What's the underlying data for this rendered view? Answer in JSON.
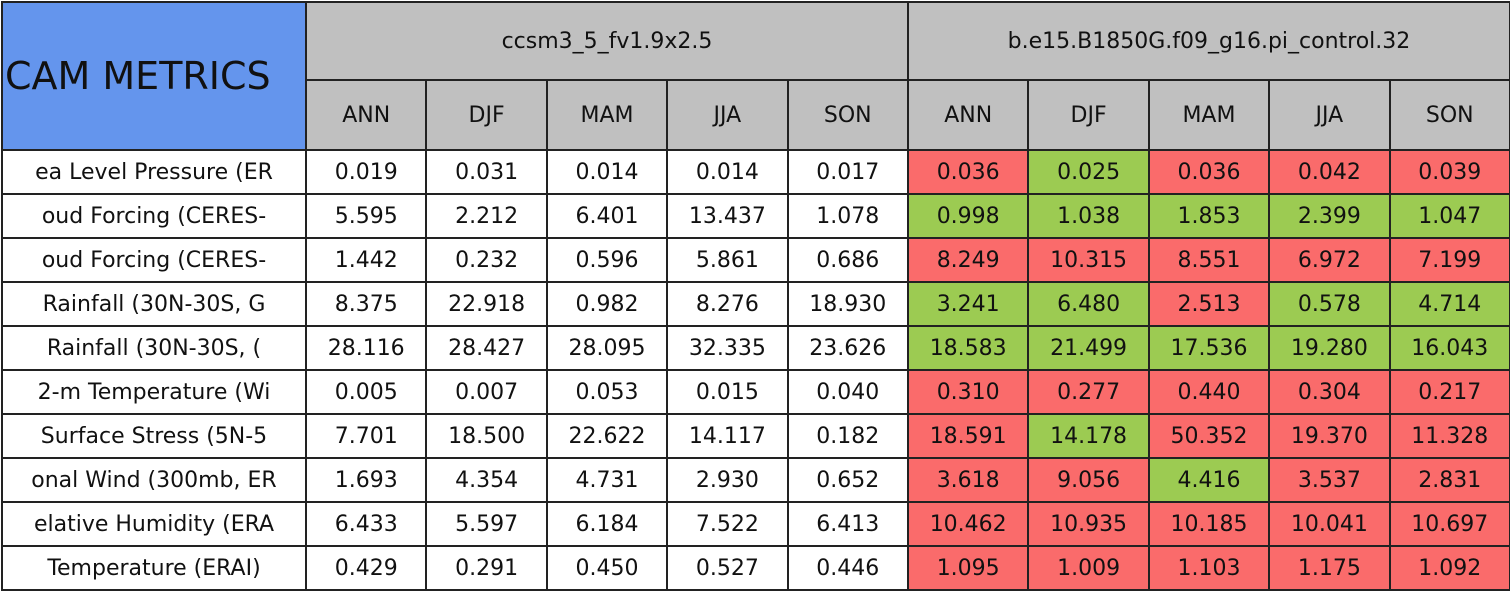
{
  "table": {
    "title": "CAM METRICS",
    "models": [
      "ccsm3_5_fv1.9x2.5",
      "b.e15.B1850G.f09_g16.pi_control.32"
    ],
    "seasons": [
      "ANN",
      "DJF",
      "MAM",
      "JJA",
      "SON"
    ],
    "rows": [
      {
        "label": "ea Level Pressure (ER",
        "cells": [
          "0.019",
          "0.031",
          "0.014",
          "0.014",
          "0.017",
          "0.036",
          "0.025",
          "0.036",
          "0.042",
          "0.039"
        ],
        "colors": [
          "#fa6b6b",
          "#9ccb52",
          "#fa6b6b",
          "#fa6b6b",
          "#fa6b6b"
        ]
      },
      {
        "label": "oud Forcing (CERES-",
        "cells": [
          "5.595",
          "2.212",
          "6.401",
          "13.437",
          "1.078",
          "0.998",
          "1.038",
          "1.853",
          "2.399",
          "1.047"
        ],
        "colors": [
          "#9ccb52",
          "#9ccb52",
          "#9ccb52",
          "#9ccb52",
          "#9ccb52"
        ]
      },
      {
        "label": "oud Forcing (CERES-",
        "cells": [
          "1.442",
          "0.232",
          "0.596",
          "5.861",
          "0.686",
          "8.249",
          "10.315",
          "8.551",
          "6.972",
          "7.199"
        ],
        "colors": [
          "#fa6b6b",
          "#fa6b6b",
          "#fa6b6b",
          "#fa6b6b",
          "#fa6b6b"
        ]
      },
      {
        "label": "Rainfall (30N-30S, G",
        "cells": [
          "8.375",
          "22.918",
          "0.982",
          "8.276",
          "18.930",
          "3.241",
          "6.480",
          "2.513",
          "0.578",
          "4.714"
        ],
        "colors": [
          "#9ccb52",
          "#9ccb52",
          "#fa6b6b",
          "#9ccb52",
          "#9ccb52"
        ]
      },
      {
        "label": "Rainfall (30N-30S, (",
        "cells": [
          "28.116",
          "28.427",
          "28.095",
          "32.335",
          "23.626",
          "18.583",
          "21.499",
          "17.536",
          "19.280",
          "16.043"
        ],
        "colors": [
          "#9ccb52",
          "#9ccb52",
          "#9ccb52",
          "#9ccb52",
          "#9ccb52"
        ]
      },
      {
        "label": "2-m Temperature (Wi",
        "cells": [
          "0.005",
          "0.007",
          "0.053",
          "0.015",
          "0.040",
          "0.310",
          "0.277",
          "0.440",
          "0.304",
          "0.217"
        ],
        "colors": [
          "#fa6b6b",
          "#fa6b6b",
          "#fa6b6b",
          "#fa6b6b",
          "#fa6b6b"
        ]
      },
      {
        "label": "Surface Stress (5N-5",
        "cells": [
          "7.701",
          "18.500",
          "22.622",
          "14.117",
          "0.182",
          "18.591",
          "14.178",
          "50.352",
          "19.370",
          "11.328"
        ],
        "colors": [
          "#fa6b6b",
          "#9ccb52",
          "#fa6b6b",
          "#fa6b6b",
          "#fa6b6b"
        ]
      },
      {
        "label": "onal Wind (300mb, ER",
        "cells": [
          "1.693",
          "4.354",
          "4.731",
          "2.930",
          "0.652",
          "3.618",
          "9.056",
          "4.416",
          "3.537",
          "2.831"
        ],
        "colors": [
          "#fa6b6b",
          "#fa6b6b",
          "#9ccb52",
          "#fa6b6b",
          "#fa6b6b"
        ]
      },
      {
        "label": "elative Humidity (ERA",
        "cells": [
          "6.433",
          "5.597",
          "6.184",
          "7.522",
          "6.413",
          "10.462",
          "10.935",
          "10.185",
          "10.041",
          "10.697"
        ],
        "colors": [
          "#fa6b6b",
          "#fa6b6b",
          "#fa6b6b",
          "#fa6b6b",
          "#fa6b6b"
        ]
      },
      {
        "label": "Temperature (ERAI)",
        "cells": [
          "0.429",
          "0.291",
          "0.450",
          "0.527",
          "0.446",
          "1.095",
          "1.009",
          "1.103",
          "1.175",
          "1.092"
        ],
        "colors": [
          "#fa6b6b",
          "#fa6b6b",
          "#fa6b6b",
          "#fa6b6b",
          "#fa6b6b"
        ]
      }
    ]
  }
}
